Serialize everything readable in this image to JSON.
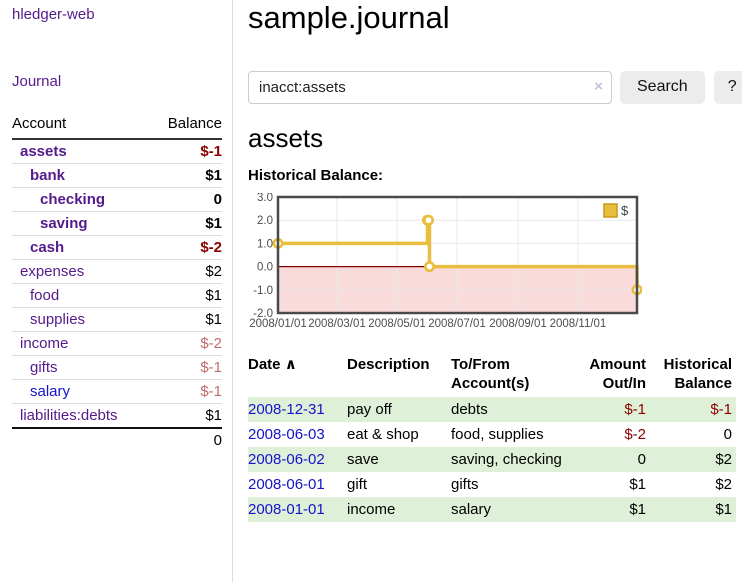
{
  "colors": {
    "link_purple": "#551a8b",
    "link_blue": "#1414cc",
    "negative_strong": "#8b0000",
    "negative_muted": "#bf6c6c",
    "row_highlight_green": "#dff0d8",
    "chart_gold": "#e9bd3e",
    "chart_negative_region": "#fadbdb",
    "chart_zero_line": "#8b0000",
    "chart_frame": "#4a4a4a",
    "chart_grid": "#e8e8e8"
  },
  "sidebar": {
    "brand": "hledger-web",
    "journal_label": "Journal",
    "accounts": {
      "headers": [
        "Account",
        "Balance"
      ],
      "rows": [
        {
          "name": "assets",
          "level": 1,
          "balance": "$-1",
          "bold": true,
          "negative": "strong",
          "link": "purple"
        },
        {
          "name": "bank",
          "level": 2,
          "balance": "$1",
          "bold": true,
          "negative": "none",
          "link": "purple"
        },
        {
          "name": "checking",
          "level": 3,
          "balance": "0",
          "bold": true,
          "negative": "none",
          "link": "purple"
        },
        {
          "name": "saving",
          "level": 3,
          "balance": "$1",
          "bold": true,
          "negative": "none",
          "link": "purple"
        },
        {
          "name": "cash",
          "level": 2,
          "balance": "$-2",
          "bold": true,
          "negative": "strong",
          "link": "purple"
        },
        {
          "name": "expenses",
          "level": 1,
          "balance": "$2",
          "bold": false,
          "negative": "none",
          "link": "purple"
        },
        {
          "name": "food",
          "level": 2,
          "balance": "$1",
          "bold": false,
          "negative": "none",
          "link": "purple"
        },
        {
          "name": "supplies",
          "level": 2,
          "balance": "$1",
          "bold": false,
          "negative": "none",
          "link": "purple"
        },
        {
          "name": "income",
          "level": 1,
          "balance": "$-2",
          "bold": false,
          "negative": "muted",
          "link": "purple"
        },
        {
          "name": "gifts",
          "level": 2,
          "balance": "$-1",
          "bold": false,
          "negative": "muted",
          "link": "purple"
        },
        {
          "name": "salary",
          "level": 2,
          "balance": "$-1",
          "bold": false,
          "negative": "muted",
          "link": "blue"
        },
        {
          "name": "liabilities:debts",
          "level": 1,
          "balance": "$1",
          "bold": false,
          "negative": "none",
          "link": "purple",
          "last": true
        }
      ],
      "total": "0"
    }
  },
  "main": {
    "title": "sample.journal",
    "search": {
      "value": "inacct:assets",
      "clear_icon": "×",
      "button_label": "Search",
      "help_label": "?"
    },
    "account_heading": "assets",
    "chart_heading": "Historical Balance:"
  },
  "chart_data": {
    "type": "line",
    "title": "Historical Balance",
    "step": true,
    "series": [
      {
        "name": "$",
        "x": [
          "2008-01-01",
          "2008-06-01",
          "2008-06-02",
          "2008-06-03",
          "2008-12-31"
        ],
        "x_days": [
          0,
          152,
          153,
          154,
          365
        ],
        "values": [
          1,
          2,
          2,
          0,
          -1
        ]
      }
    ],
    "ylim": [
      -2,
      3
    ],
    "y_ticks": [
      {
        "v": 3,
        "label": "3.0"
      },
      {
        "v": 2,
        "label": "2.0"
      },
      {
        "v": 1,
        "label": "1.0"
      },
      {
        "v": 0,
        "label": "0.0"
      },
      {
        "v": -1,
        "label": "-1.0"
      },
      {
        "v": -2,
        "label": "-2.0"
      }
    ],
    "x_range_days": [
      0,
      365
    ],
    "x_ticks": [
      {
        "day": 0,
        "label": "2008/01/01"
      },
      {
        "day": 60,
        "label": "2008/03/01"
      },
      {
        "day": 121,
        "label": "2008/05/01"
      },
      {
        "day": 182,
        "label": "2008/07/01"
      },
      {
        "day": 244,
        "label": "2008/09/01"
      },
      {
        "day": 305,
        "label": "2008/11/01"
      }
    ],
    "legend": {
      "label": "$",
      "position": "top-right"
    },
    "grid": true,
    "negative_region_shaded": true
  },
  "register": {
    "headers": {
      "date": "Date",
      "sort_icon": "∧",
      "description": "Description",
      "account": "To/From Account(s)",
      "amount": "Amount Out/In",
      "balance": "Historical Balance"
    },
    "rows": [
      {
        "date": "2008-12-31",
        "description": "pay off",
        "account": "debts",
        "amount": "$-1",
        "amount_negative": true,
        "balance": "$-1",
        "balance_negative": true,
        "highlight": true
      },
      {
        "date": "2008-06-03",
        "description": "eat & shop",
        "account": "food, supplies",
        "amount": "$-2",
        "amount_negative": true,
        "balance": "0",
        "balance_negative": false,
        "highlight": false
      },
      {
        "date": "2008-06-02",
        "description": "save",
        "account": "saving, checking",
        "amount": "0",
        "amount_negative": false,
        "balance": "$2",
        "balance_negative": false,
        "highlight": true
      },
      {
        "date": "2008-06-01",
        "description": "gift",
        "account": "gifts",
        "amount": "$1",
        "amount_negative": false,
        "balance": "$2",
        "balance_negative": false,
        "highlight": false
      },
      {
        "date": "2008-01-01",
        "description": "income",
        "account": "salary",
        "amount": "$1",
        "amount_negative": false,
        "balance": "$1",
        "balance_negative": false,
        "highlight": true
      }
    ]
  }
}
